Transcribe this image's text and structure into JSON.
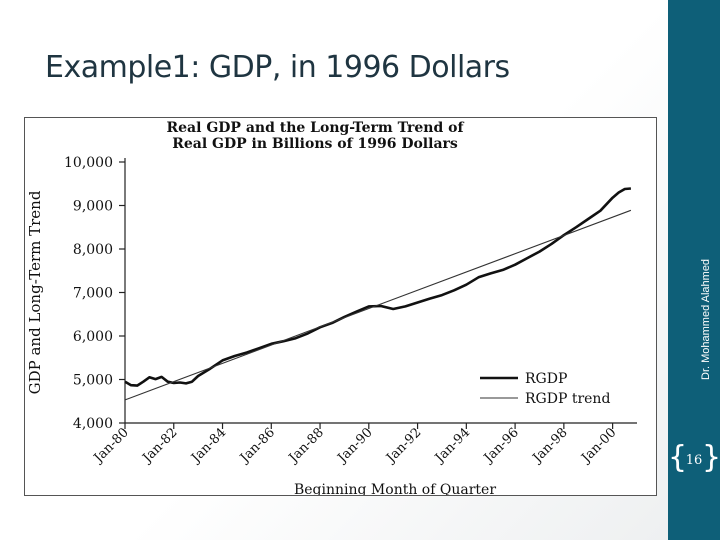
{
  "slide": {
    "title": "Example1: GDP, in 1996 Dollars",
    "author": "Dr. Mohammed Alahmed",
    "page_number": "16"
  },
  "colors": {
    "sidebar": "#0e5f78",
    "title": "#1f3541"
  },
  "chart_data": {
    "type": "line",
    "title": [
      "Real GDP and the Long-Term Trend of",
      "Real GDP in Billions of 1996 Dollars"
    ],
    "xlabel": "Beginning Month of Quarter",
    "ylabel": "GDP and Long-Term Trend",
    "ylim": [
      4000,
      10000
    ],
    "yticks": [
      4000,
      5000,
      6000,
      7000,
      8000,
      9000,
      10000
    ],
    "ytick_labels": [
      "4,000",
      "5,000",
      "6,000",
      "7,000",
      "8,000",
      "9,000",
      "10,000"
    ],
    "xlim": [
      1980.0,
      2001.0
    ],
    "xticks": [
      1980,
      1982,
      1984,
      1986,
      1988,
      1990,
      1992,
      1994,
      1996,
      1998,
      2000
    ],
    "xtick_labels": [
      "Jan-80",
      "Jan-82",
      "Jan-84",
      "Jan-86",
      "Jan-88",
      "Jan-90",
      "Jan-92",
      "Jan-94",
      "Jan-96",
      "Jan-98",
      "Jan-00"
    ],
    "legend": [
      "RGDP",
      "RGDP trend"
    ],
    "series": [
      {
        "name": "RGDP",
        "x": [
          1980.0,
          1980.25,
          1980.5,
          1980.75,
          1981.0,
          1981.25,
          1981.5,
          1981.75,
          1982.0,
          1982.25,
          1982.5,
          1982.75,
          1983.0,
          1983.5,
          1984.0,
          1984.5,
          1985.0,
          1985.5,
          1986.0,
          1986.5,
          1987.0,
          1987.5,
          1988.0,
          1988.5,
          1989.0,
          1989.5,
          1990.0,
          1990.5,
          1991.0,
          1991.5,
          1992.0,
          1992.5,
          1993.0,
          1993.5,
          1994.0,
          1994.5,
          1995.0,
          1995.5,
          1996.0,
          1996.5,
          1997.0,
          1997.5,
          1998.0,
          1998.5,
          1999.0,
          1999.5,
          2000.0,
          2000.25,
          2000.5,
          2000.75
        ],
        "values": [
          4950,
          4870,
          4860,
          4950,
          5050,
          5010,
          5060,
          4950,
          4920,
          4930,
          4910,
          4950,
          5080,
          5250,
          5440,
          5540,
          5620,
          5720,
          5820,
          5880,
          5950,
          6060,
          6200,
          6300,
          6440,
          6560,
          6680,
          6690,
          6620,
          6680,
          6770,
          6860,
          6940,
          7050,
          7180,
          7350,
          7440,
          7520,
          7640,
          7790,
          7940,
          8120,
          8320,
          8500,
          8690,
          8880,
          9180,
          9300,
          9380,
          9390
        ]
      },
      {
        "name": "RGDP trend",
        "x": [
          1980.0,
          2000.75
        ],
        "values": [
          4530,
          8890
        ]
      }
    ]
  }
}
